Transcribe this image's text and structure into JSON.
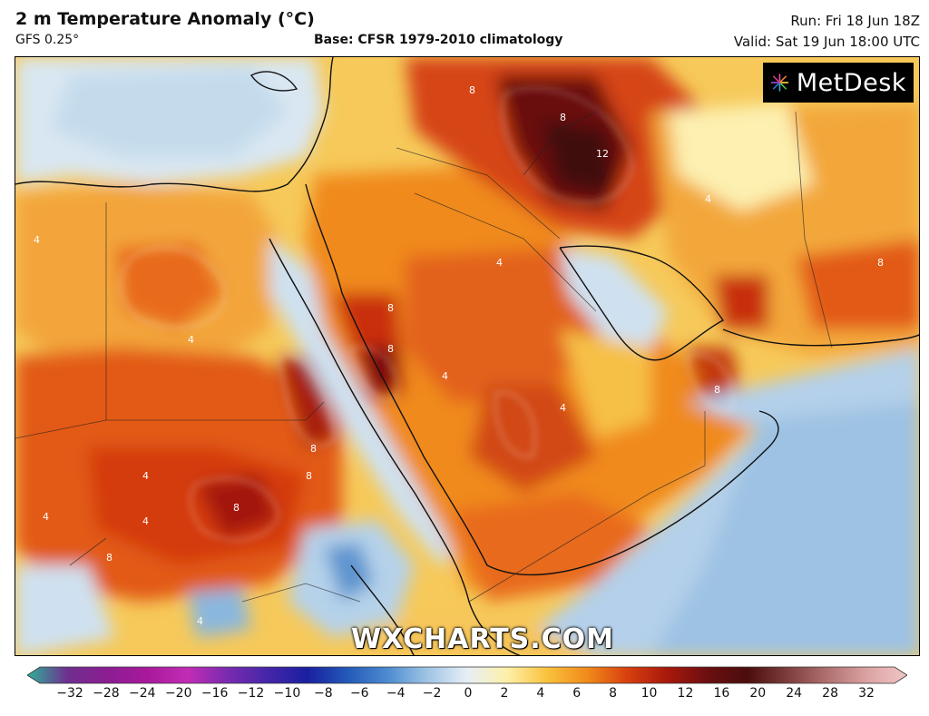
{
  "header": {
    "title": "2 m Temperature Anomaly (°C)",
    "model": "GFS 0.25°",
    "base": "Base: CFSR 1979-2010 climatology",
    "run": "Run: Fri 18 Jun 18Z",
    "valid": "Valid: Sat 19 Jun 18:00 UTC"
  },
  "logo": {
    "text": "MetDesk",
    "icon": "metdesk-starburst-icon"
  },
  "watermark": "WXCHARTS.COM",
  "colorbar": {
    "ticks": [
      "−32",
      "−28",
      "−24",
      "−20",
      "−16",
      "−12",
      "−10",
      "−8",
      "−6",
      "−4",
      "−2",
      "0",
      "2",
      "4",
      "6",
      "8",
      "10",
      "12",
      "16",
      "20",
      "24",
      "28",
      "32"
    ],
    "colors": [
      "#2fb29a",
      "#6e2f8f",
      "#8b1d92",
      "#a8199a",
      "#c22cb5",
      "#7a2bb0",
      "#4526a8",
      "#1a1fa0",
      "#2359b8",
      "#4c8bd0",
      "#9fc4e4",
      "#e7eff7",
      "#fdf0a8",
      "#f9c23c",
      "#f18a1a",
      "#d8400f",
      "#a8180c",
      "#6b0f10",
      "#4a0d0c",
      "#7d3d3d",
      "#b07070",
      "#dba3a3",
      "#f2c6c6"
    ]
  },
  "map": {
    "contour_labels": [
      "4",
      "4",
      "4",
      "4",
      "4",
      "4",
      "4",
      "4",
      "4",
      "4",
      "8",
      "8",
      "8",
      "8",
      "8",
      "8",
      "8",
      "8",
      "8",
      "8",
      "12"
    ]
  }
}
